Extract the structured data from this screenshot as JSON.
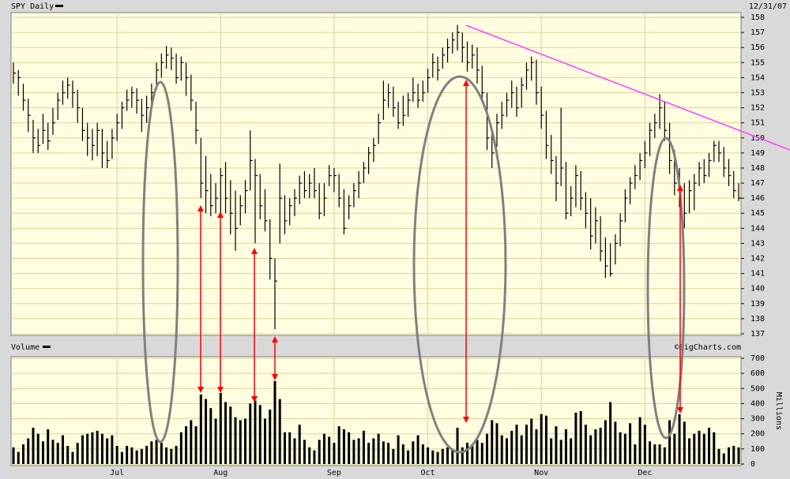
{
  "chart_data": {
    "type": "ohlc",
    "title": "SPY Daily",
    "date_label": "12/31/07",
    "watermark": "©SigCharts.com",
    "color": "#000000",
    "grid": true,
    "categories": [
      null,
      null,
      null,
      null,
      null,
      null,
      null,
      null,
      null,
      null,
      null,
      null,
      null,
      null,
      null,
      null,
      null,
      null,
      null,
      null,
      null,
      "Jul",
      null,
      null,
      null,
      null,
      null,
      null,
      null,
      null,
      null,
      null,
      null,
      null,
      null,
      null,
      null,
      null,
      null,
      null,
      null,
      null,
      "Aug",
      null,
      null,
      null,
      null,
      null,
      null,
      null,
      null,
      null,
      null,
      null,
      null,
      null,
      null,
      null,
      null,
      null,
      null,
      null,
      null,
      null,
      null,
      "Sep",
      null,
      null,
      null,
      null,
      null,
      null,
      null,
      null,
      null,
      null,
      null,
      null,
      null,
      null,
      null,
      null,
      null,
      null,
      "Oct",
      null,
      null,
      null,
      null,
      null,
      null,
      null,
      null,
      null,
      null,
      null,
      null,
      null,
      null,
      null,
      null,
      null,
      null,
      null,
      null,
      null,
      null,
      "Nov",
      null,
      null,
      null,
      null,
      null,
      null,
      null,
      null,
      null,
      null,
      null,
      null,
      null,
      null,
      null,
      null,
      null,
      null,
      null,
      null,
      "Dec",
      null,
      null,
      null,
      null,
      null,
      null,
      null,
      null,
      null,
      null,
      null,
      null,
      null,
      null,
      null,
      null,
      null,
      null,
      null
    ],
    "high": [
      155.0,
      154.5,
      153.6,
      152.6,
      151.2,
      150.6,
      151.6,
      151.0,
      152.0,
      153.0,
      153.8,
      154.0,
      153.8,
      153.2,
      152.0,
      151.0,
      150.6,
      151.0,
      150.6,
      149.8,
      150.6,
      151.6,
      152.4,
      153.2,
      153.4,
      153.3,
      152.6,
      152.8,
      153.6,
      155.0,
      155.6,
      156.1,
      156.0,
      155.6,
      155.4,
      155.0,
      154.2,
      152.4,
      150.0,
      148.8,
      147.6,
      147.0,
      148.0,
      148.4,
      147.2,
      146.5,
      146.2,
      147.2,
      150.5,
      148.6,
      147.6,
      146.6,
      144.6,
      142.0,
      148.3,
      146.2,
      146.0,
      146.6,
      147.5,
      147.8,
      147.6,
      148.0,
      147.0,
      147.0,
      148.2,
      148.0,
      147.6,
      146.6,
      146.2,
      147.0,
      147.8,
      148.4,
      149.4,
      150.0,
      151.6,
      153.8,
      153.6,
      153.4,
      152.4,
      152.8,
      153.0,
      154.0,
      153.6,
      153.8,
      154.6,
      155.6,
      155.4,
      156.0,
      156.6,
      157.0,
      157.5,
      157.0,
      156.4,
      156.2,
      156.0,
      154.8,
      153.0,
      150.6,
      151.6,
      152.4,
      153.0,
      153.8,
      153.4,
      154.0,
      155.0,
      155.4,
      155.2,
      153.4,
      151.8,
      150.2,
      148.8,
      152.0,
      148.4,
      146.8,
      148.2,
      147.8,
      146.4,
      146.0,
      145.4,
      144.8,
      143.4,
      143.0,
      143.6,
      145.0,
      146.6,
      147.4,
      148.2,
      149.0,
      149.8,
      151.0,
      151.6,
      152.9,
      152.4,
      151.0,
      149.2,
      148.0,
      147.0,
      147.2,
      147.6,
      148.4,
      148.6,
      149.0,
      149.8,
      149.8,
      149.4,
      148.6,
      147.8,
      147.0
    ],
    "low": [
      153.6,
      152.8,
      151.8,
      150.4,
      149.0,
      149.0,
      149.6,
      149.2,
      150.2,
      151.2,
      152.2,
      152.6,
      152.0,
      151.0,
      149.8,
      148.8,
      148.5,
      148.8,
      148.0,
      148.0,
      148.6,
      149.8,
      150.6,
      151.8,
      152.0,
      151.6,
      150.4,
      151.0,
      152.0,
      153.2,
      154.0,
      154.6,
      154.5,
      153.6,
      153.8,
      152.8,
      151.8,
      149.6,
      146.0,
      145.0,
      144.8,
      145.0,
      144.8,
      145.0,
      143.6,
      142.5,
      144.2,
      145.0,
      146.5,
      143.0,
      144.6,
      143.8,
      140.6,
      137.3,
      143.0,
      143.6,
      144.2,
      144.8,
      145.6,
      146.0,
      146.0,
      146.0,
      144.6,
      144.8,
      146.8,
      146.4,
      145.4,
      143.6,
      144.6,
      145.4,
      146.0,
      147.0,
      147.6,
      148.4,
      149.6,
      151.2,
      152.0,
      151.4,
      150.6,
      150.8,
      151.4,
      152.4,
      152.0,
      152.4,
      153.0,
      154.0,
      153.8,
      154.6,
      155.0,
      155.6,
      155.8,
      155.0,
      154.4,
      154.6,
      153.6,
      152.4,
      149.2,
      148.0,
      149.4,
      150.6,
      151.4,
      152.0,
      151.4,
      152.0,
      153.2,
      153.8,
      152.2,
      150.6,
      148.6,
      147.6,
      145.8,
      146.8,
      144.6,
      144.8,
      145.4,
      145.2,
      144.0,
      142.6,
      143.0,
      141.8,
      140.7,
      140.8,
      141.6,
      142.8,
      144.4,
      145.6,
      146.6,
      147.2,
      148.0,
      148.8,
      150.0,
      150.6,
      149.8,
      147.6,
      146.2,
      145.4,
      144.0,
      145.0,
      145.2,
      146.8,
      147.0,
      147.4,
      148.4,
      148.4,
      147.4,
      146.8,
      146.0,
      145.8
    ],
    "close": [
      154.3,
      154.0,
      152.5,
      151.5,
      150.0,
      149.5,
      150.5,
      149.8,
      151.0,
      152.5,
      153.0,
      153.5,
      153.0,
      152.0,
      150.5,
      150.0,
      149.5,
      150.5,
      149.0,
      148.5,
      150.0,
      151.0,
      152.0,
      152.5,
      153.0,
      152.5,
      151.5,
      152.0,
      153.0,
      154.5,
      155.0,
      155.5,
      155.3,
      154.0,
      155.0,
      154.0,
      152.5,
      150.5,
      147.0,
      146.5,
      145.5,
      146.0,
      147.5,
      146.0,
      145.0,
      144.0,
      145.5,
      146.5,
      148.5,
      147.5,
      145.5,
      144.5,
      142.0,
      140.5,
      146.0,
      144.5,
      145.5,
      146.0,
      147.0,
      146.5,
      147.0,
      146.5,
      145.0,
      146.0,
      147.5,
      147.5,
      146.0,
      144.0,
      145.5,
      146.5,
      147.0,
      148.0,
      149.0,
      149.5,
      151.0,
      152.5,
      153.0,
      152.0,
      151.0,
      151.5,
      152.5,
      153.0,
      152.5,
      153.0,
      154.0,
      155.0,
      154.5,
      155.5,
      156.0,
      156.5,
      157.0,
      156.0,
      155.0,
      155.5,
      154.5,
      153.0,
      150.0,
      149.0,
      151.0,
      151.5,
      152.5,
      153.0,
      152.0,
      153.5,
      154.5,
      155.0,
      153.0,
      151.5,
      149.5,
      148.5,
      147.0,
      148.0,
      145.0,
      146.0,
      147.5,
      146.0,
      145.0,
      143.5,
      144.5,
      142.5,
      141.5,
      141.0,
      143.0,
      144.5,
      146.0,
      147.0,
      147.5,
      148.5,
      149.0,
      150.5,
      151.0,
      152.0,
      150.5,
      148.5,
      147.0,
      146.0,
      145.0,
      146.5,
      147.0,
      148.0,
      147.5,
      148.5,
      149.5,
      149.0,
      148.0,
      147.5,
      146.5,
      146.0
    ],
    "ylim": [
      137,
      158
    ],
    "yticks": [
      137,
      138,
      139,
      140,
      141,
      142,
      143,
      144,
      145,
      146,
      147,
      148,
      149,
      150,
      151,
      152,
      153,
      154,
      155,
      156,
      157,
      158
    ],
    "volume": {
      "title": "Volume",
      "axis_label": "Millions",
      "color": "#000000",
      "values": [
        110,
        80,
        130,
        170,
        240,
        200,
        150,
        230,
        160,
        140,
        190,
        120,
        80,
        140,
        190,
        200,
        210,
        220,
        200,
        170,
        190,
        120,
        80,
        120,
        110,
        90,
        100,
        120,
        150,
        160,
        140,
        110,
        100,
        120,
        210,
        250,
        290,
        250,
        460,
        430,
        370,
        300,
        470,
        410,
        380,
        310,
        290,
        300,
        400,
        420,
        390,
        300,
        360,
        550,
        430,
        210,
        210,
        170,
        260,
        160,
        110,
        90,
        160,
        200,
        180,
        140,
        250,
        230,
        210,
        160,
        170,
        220,
        140,
        170,
        200,
        150,
        140,
        100,
        190,
        130,
        90,
        150,
        190,
        130,
        110,
        90,
        80,
        100,
        110,
        90,
        240,
        110,
        140,
        130,
        160,
        140,
        200,
        290,
        270,
        190,
        170,
        220,
        260,
        190,
        260,
        300,
        230,
        330,
        320,
        170,
        250,
        160,
        230,
        170,
        340,
        350,
        260,
        190,
        230,
        240,
        290,
        410,
        280,
        210,
        200,
        270,
        130,
        310,
        260,
        150,
        130,
        130,
        110,
        290,
        200,
        330,
        280,
        170,
        200,
        220,
        200,
        240,
        210,
        100,
        70,
        110,
        120,
        110
      ],
      "ylim": [
        0,
        700
      ],
      "yticks": [
        0,
        100,
        200,
        300,
        400,
        500,
        600,
        700
      ]
    }
  }
}
